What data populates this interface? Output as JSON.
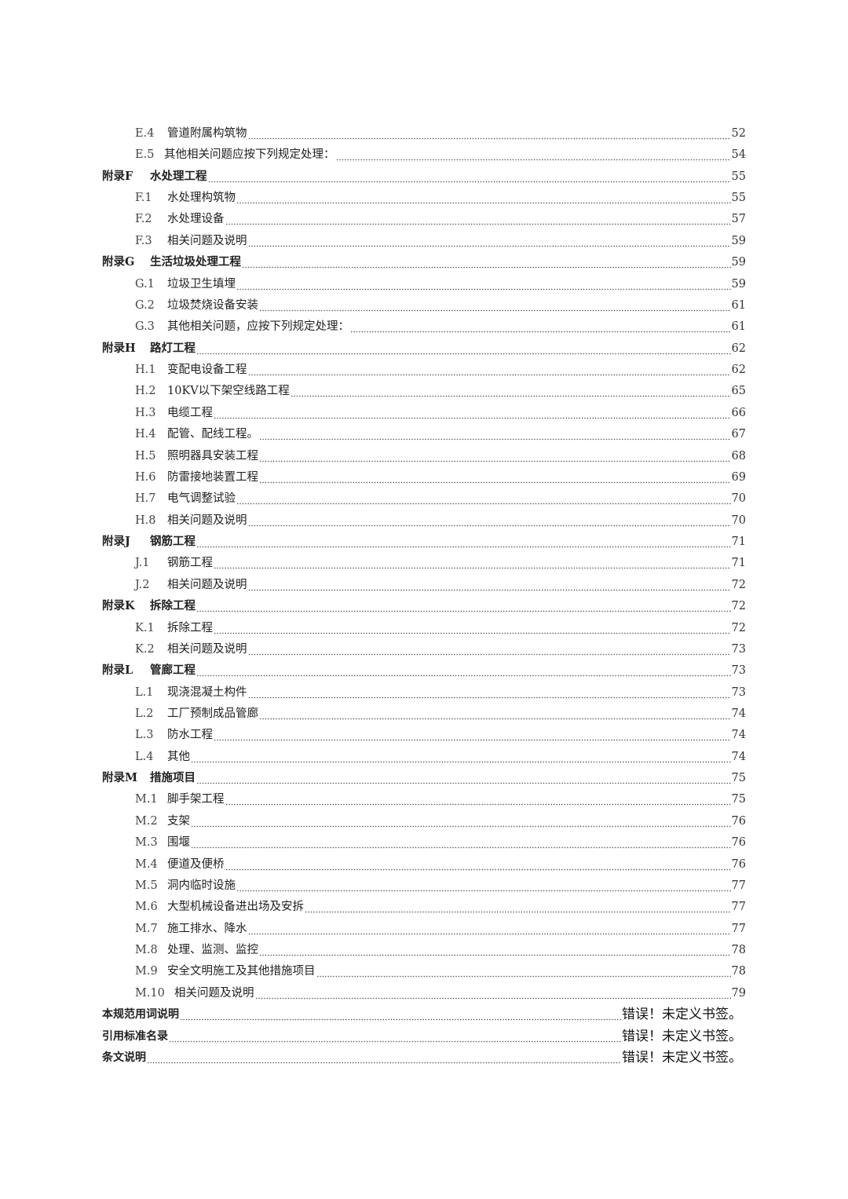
{
  "toc": [
    {
      "level": 2,
      "label": "E.4",
      "title": "管道附属构筑物",
      "page": "52"
    },
    {
      "level": 2,
      "label": "E.5",
      "title": "其他相关问题应按下列规定处理：",
      "page": "54",
      "tight": true
    },
    {
      "level": 1,
      "label": "附录F",
      "title": "水处理工程",
      "page": "55"
    },
    {
      "level": 2,
      "label": "F.1",
      "title": "水处理构筑物",
      "page": "55"
    },
    {
      "level": 2,
      "label": "F.2",
      "title": "水处理设备",
      "page": "57"
    },
    {
      "level": 2,
      "label": "F.3",
      "title": "相关问题及说明",
      "page": "59"
    },
    {
      "level": 1,
      "label": "附录G",
      "title": "生活垃圾处理工程",
      "page": "59"
    },
    {
      "level": 2,
      "label": "G.1",
      "title": "垃圾卫生填埋",
      "page": "59"
    },
    {
      "level": 2,
      "label": "G.2",
      "title": "垃圾焚烧设备安装",
      "page": "61"
    },
    {
      "level": 2,
      "label": "G.3",
      "title": "其他相关问题，应按下列规定处理：",
      "page": "61"
    },
    {
      "level": 1,
      "label": "附录H",
      "title": "路灯工程",
      "page": "62"
    },
    {
      "level": 2,
      "label": "H.1",
      "title": "变配电设备工程",
      "page": "62"
    },
    {
      "level": 2,
      "label": "H.2",
      "title": "10KV以下架空线路工程",
      "page": "65"
    },
    {
      "level": 2,
      "label": "H.3",
      "title": "电缆工程",
      "page": "66"
    },
    {
      "level": 2,
      "label": "H.4",
      "title": "配管、配线工程。",
      "page": "67"
    },
    {
      "level": 2,
      "label": "H.5",
      "title": "照明器具安装工程",
      "page": "68"
    },
    {
      "level": 2,
      "label": "H.6",
      "title": "防雷接地装置工程",
      "page": "69"
    },
    {
      "level": 2,
      "label": "H.7",
      "title": "电气调整试验",
      "page": "70"
    },
    {
      "level": 2,
      "label": "H.8",
      "title": "相关问题及说明",
      "page": "70"
    },
    {
      "level": 1,
      "label": "附录J",
      "title": "钢筋工程",
      "page": "71"
    },
    {
      "level": 2,
      "label": "J.1",
      "title": "钢筋工程",
      "page": "71"
    },
    {
      "level": 2,
      "label": "J.2",
      "title": "相关问题及说明",
      "page": "72"
    },
    {
      "level": 1,
      "label": "附录K",
      "title": "拆除工程",
      "page": "72"
    },
    {
      "level": 2,
      "label": "K.1",
      "title": "拆除工程",
      "page": "72"
    },
    {
      "level": 2,
      "label": "K.2",
      "title": "相关问题及说明",
      "page": "73"
    },
    {
      "level": 1,
      "label": "附录L",
      "title": "管廊工程",
      "page": "73"
    },
    {
      "level": 2,
      "label": "L.1",
      "title": "现浇混凝土构件",
      "page": "73"
    },
    {
      "level": 2,
      "label": "L.2",
      "title": "工厂预制成品管廊",
      "page": "74"
    },
    {
      "level": 2,
      "label": "L.3",
      "title": "防水工程",
      "page": "74"
    },
    {
      "level": 2,
      "label": "L.4",
      "title": "其他",
      "page": "74"
    },
    {
      "level": 1,
      "label": "附录M",
      "title": "措施项目",
      "page": "75"
    },
    {
      "level": 2,
      "label": "M.1",
      "title": "脚手架工程",
      "page": "75"
    },
    {
      "level": 2,
      "label": "M.2",
      "title": "支架",
      "page": "76"
    },
    {
      "level": 2,
      "label": "M.3",
      "title": "围堰",
      "page": "76"
    },
    {
      "level": 2,
      "label": "M.4",
      "title": "便道及便桥",
      "page": "76"
    },
    {
      "level": 2,
      "label": "M.5",
      "title": "洞内临时设施",
      "page": "77"
    },
    {
      "level": 2,
      "label": "M.6",
      "title": "大型机械设备进出场及安拆",
      "page": "77"
    },
    {
      "level": 2,
      "label": "M.7",
      "title": "施工排水、降水",
      "page": "77"
    },
    {
      "level": 2,
      "label": "M.8",
      "title": "处理、监测、监控",
      "page": "78"
    },
    {
      "level": 2,
      "label": "M.9",
      "title": "安全文明施工及其他措施项目",
      "page": "78"
    },
    {
      "level": 2,
      "label": "M.10",
      "title": "相关问题及说明",
      "page": "79",
      "wide": true
    },
    {
      "level": 0,
      "label": "",
      "title": "本规范用词说明",
      "page": "错误！未定义书签。"
    },
    {
      "level": 0,
      "label": "",
      "title": "引用标准名录",
      "page": "错误！未定义书签。"
    },
    {
      "level": 0,
      "label": "",
      "title": "条文说明",
      "page": "错误！未定义书签。"
    }
  ]
}
